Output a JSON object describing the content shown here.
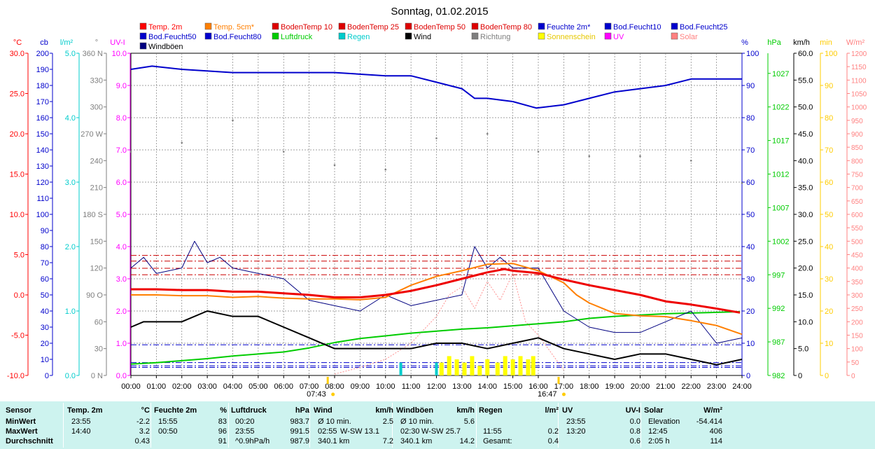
{
  "chart_data": {
    "type": "line",
    "title": "Sonntag, 01.02.2015",
    "legend": [
      {
        "name": "Temp. 2m",
        "color": "#ff0000"
      },
      {
        "name": "Temp. 5cm*",
        "color": "#ff7f00"
      },
      {
        "name": "BodenTemp 10",
        "color": "#dd0000"
      },
      {
        "name": "BodenTemp 25",
        "color": "#dd0000"
      },
      {
        "name": "BodenTemp 50",
        "color": "#dd0000"
      },
      {
        "name": "BodenTemp 80",
        "color": "#dd0000"
      },
      {
        "name": "Feuchte 2m*",
        "color": "#0000cc"
      },
      {
        "name": "Bod.Feucht10",
        "color": "#0000cc"
      },
      {
        "name": "Bod.Feucht25",
        "color": "#0000cc"
      },
      {
        "name": "Bod.Feucht50",
        "color": "#0000cc"
      },
      {
        "name": "Bod.Feucht80",
        "color": "#0000cc"
      },
      {
        "name": "Luftdruck",
        "color": "#00cc00"
      },
      {
        "name": "Regen",
        "color": "#00cccc"
      },
      {
        "name": "Wind",
        "color": "#000000"
      },
      {
        "name": "Richtung",
        "color": "#7f7f7f"
      },
      {
        "name": "Sonnenschein",
        "color": "#ffff00"
      },
      {
        "name": "UV",
        "color": "#ff00ff"
      },
      {
        "name": "Solar",
        "color": "#ff8080"
      },
      {
        "name": "Windböen",
        "color": "#000080"
      }
    ],
    "x_ticks": [
      "00:00",
      "01:00",
      "02:00",
      "03:00",
      "04:00",
      "05:00",
      "06:00",
      "07:00",
      "08:00",
      "09:00",
      "10:00",
      "11:00",
      "12:00",
      "13:00",
      "14:00",
      "15:00",
      "16:00",
      "17:00",
      "18:00",
      "19:00",
      "20:00",
      "21:00",
      "22:00",
      "23:00",
      "24:00"
    ],
    "sunrise_label": "07:43",
    "sunset_label": "16:47",
    "left_axes": [
      {
        "unit": "°C",
        "color": "#ff0000",
        "ticks": [
          "30.0",
          "25.0",
          "20.0",
          "15.0",
          "10.0",
          "5.0",
          "0.0",
          "-5.0",
          "-10.0"
        ]
      },
      {
        "unit": "cb",
        "color": "#0000cc",
        "ticks": [
          "200",
          "190",
          "180",
          "170",
          "160",
          "150",
          "140",
          "130",
          "120",
          "110",
          "100",
          "90",
          "80",
          "70",
          "60",
          "50",
          "40",
          "30",
          "20",
          "10",
          "0"
        ]
      },
      {
        "unit": "l/m²",
        "color": "#00cccc",
        "ticks": [
          "5.0",
          "4.0",
          "3.0",
          "2.0",
          "1.0",
          "0.0"
        ]
      },
      {
        "unit": "°",
        "color": "#7f7f7f",
        "ticks": [
          "360 N",
          "330",
          "300",
          "270 W",
          "240",
          "210",
          "180 S",
          "150",
          "120",
          "90 O",
          "60",
          "30",
          "0 N"
        ]
      },
      {
        "unit": "UV-I",
        "color": "#ff00ff",
        "ticks": [
          "10.0",
          "9.0",
          "8.0",
          "7.0",
          "6.0",
          "5.0",
          "4.0",
          "3.0",
          "2.0",
          "1.0",
          "0.0"
        ]
      }
    ],
    "right_axes": [
      {
        "unit": "%",
        "color": "#0000cc",
        "ticks": [
          "100",
          "90",
          "80",
          "70",
          "60",
          "50",
          "40",
          "30",
          "20",
          "10",
          "0"
        ]
      },
      {
        "unit": "hPa",
        "color": "#00cc00",
        "ticks": [
          "1027",
          "1022",
          "1017",
          "1012",
          "1007",
          "1002",
          "997",
          "992",
          "987",
          "982"
        ]
      },
      {
        "unit": "km/h",
        "color": "#000000",
        "ticks": [
          "60.0",
          "55.0",
          "50.0",
          "45.0",
          "40.0",
          "35.0",
          "30.0",
          "25.0",
          "20.0",
          "15.0",
          "10.0",
          "5.0",
          "0"
        ]
      },
      {
        "unit": "min",
        "color": "#ffcc00",
        "ticks": [
          "100",
          "90",
          "80",
          "70",
          "60",
          "50",
          "40",
          "30",
          "20",
          "10",
          "0"
        ]
      },
      {
        "unit": "W/m²",
        "color": "#ff8080",
        "ticks": [
          "1200",
          "1150",
          "1100",
          "1050",
          "1000",
          "950",
          "900",
          "850",
          "800",
          "750",
          "700",
          "650",
          "600",
          "550",
          "500",
          "450",
          "400",
          "350",
          "300",
          "250",
          "200",
          "150",
          "100",
          "50",
          "0"
        ]
      }
    ],
    "series": [
      {
        "name": "Temp. 2m",
        "unit": "°C",
        "x": [
          0,
          1,
          2,
          3,
          4,
          5,
          6,
          7,
          8,
          9,
          10,
          11,
          12,
          13,
          14,
          14.67,
          15,
          16,
          17,
          18,
          19,
          20,
          21,
          22,
          23,
          23.92
        ],
        "y": [
          0.7,
          0.7,
          0.6,
          0.6,
          0.4,
          0.4,
          0.2,
          0.0,
          -0.3,
          -0.3,
          0.0,
          0.5,
          1.2,
          2.0,
          2.8,
          3.2,
          3.0,
          2.7,
          1.9,
          1.2,
          0.6,
          0.0,
          -0.8,
          -1.2,
          -1.7,
          -2.2
        ]
      },
      {
        "name": "Temp. 5cm*",
        "unit": "°C",
        "x": [
          0,
          1,
          2,
          3,
          4,
          5,
          6,
          7,
          8,
          9,
          10,
          11,
          12,
          13,
          14,
          15,
          16,
          17,
          17.5,
          18,
          19,
          20,
          21,
          22,
          23,
          24
        ],
        "y": [
          0.0,
          0.0,
          -0.1,
          -0.1,
          -0.3,
          -0.2,
          -0.4,
          -0.5,
          -0.5,
          -0.6,
          -0.3,
          1.2,
          2.3,
          3.0,
          3.8,
          3.9,
          3.0,
          1.5,
          0.0,
          -1.0,
          -2.3,
          -2.6,
          -2.7,
          -3.2,
          -3.8,
          -4.9
        ]
      },
      {
        "name": "Feuchte 2m*",
        "unit": "%",
        "x": [
          0,
          0.83,
          2,
          4,
          6,
          8,
          10,
          11,
          12,
          13,
          13.5,
          14,
          15,
          15.92,
          17,
          18,
          19,
          20,
          21,
          22,
          23,
          24
        ],
        "y": [
          95,
          96,
          95,
          94,
          94,
          94,
          93,
          93,
          91,
          89,
          86,
          86,
          85,
          83,
          84,
          86,
          88,
          89,
          90,
          92,
          92,
          92
        ]
      },
      {
        "name": "Luftdruck",
        "unit": "hPa",
        "x": [
          0,
          1,
          2,
          3,
          4,
          5,
          6,
          7,
          8,
          9,
          10,
          11,
          12,
          13,
          14,
          15,
          16,
          17,
          18,
          19,
          20,
          21,
          22,
          23,
          23.92
        ],
        "y": [
          983.7,
          983.9,
          984.2,
          984.5,
          984.9,
          985.2,
          985.5,
          986.1,
          986.9,
          987.5,
          987.9,
          988.3,
          988.6,
          988.9,
          989.1,
          989.4,
          989.7,
          990.0,
          990.5,
          990.8,
          991.0,
          991.2,
          991.3,
          991.4,
          991.5
        ]
      },
      {
        "name": "Wind",
        "unit": "km/h",
        "x": [
          0,
          0.5,
          1,
          2,
          3,
          4,
          5,
          6,
          7,
          8,
          9,
          10,
          11,
          12,
          13,
          14,
          15,
          16,
          17,
          18,
          19,
          20,
          21,
          22,
          23,
          24
        ],
        "y": [
          9,
          10,
          10,
          10,
          12,
          11,
          11,
          9,
          7,
          5,
          5,
          5,
          5,
          6,
          6,
          5,
          6,
          7,
          5,
          4,
          3,
          4,
          4,
          3,
          2,
          3
        ]
      },
      {
        "name": "Windböen",
        "unit": "km/h",
        "x": [
          0,
          0.5,
          1,
          2,
          2.5,
          3,
          3.5,
          4,
          5,
          6,
          7,
          8,
          9,
          10,
          11,
          12,
          13,
          13.5,
          14,
          14.5,
          15,
          15.5,
          16,
          17,
          18,
          19,
          20,
          21,
          22,
          23,
          24
        ],
        "y": [
          20,
          22,
          19,
          20,
          25,
          21,
          22,
          20,
          19,
          18,
          14,
          13,
          12,
          15,
          13,
          14,
          15,
          24,
          20,
          22,
          20,
          20,
          20,
          12,
          9,
          8,
          8,
          10,
          12,
          6,
          7
        ]
      },
      {
        "name": "Richtung",
        "unit": "°",
        "x": [
          0,
          2,
          4,
          6,
          8,
          10,
          12,
          14,
          16,
          18,
          20,
          22,
          24
        ],
        "y": [
          250,
          260,
          285,
          250,
          235,
          230,
          265,
          270,
          250,
          245,
          245,
          240,
          215
        ]
      }
    ],
    "reference_lines": [
      {
        "name": "BodenTemp 10",
        "unit": "°C",
        "value": 2.5
      },
      {
        "name": "BodenTemp 25",
        "unit": "°C",
        "value": 3.3
      },
      {
        "name": "BodenTemp 50",
        "unit": "°C",
        "value": 4.2
      },
      {
        "name": "BodenTemp 80",
        "unit": "°C",
        "value": 4.9
      },
      {
        "name": "Bod.Feucht10",
        "unit": "cb",
        "value": 19
      },
      {
        "name": "Bod.Feucht25",
        "unit": "cb",
        "value": 8
      },
      {
        "name": "Bod.Feucht50",
        "unit": "cb",
        "value": 6
      },
      {
        "name": "Bod.Feucht80",
        "unit": "cb",
        "value": 5
      }
    ],
    "sunshine_minutes": {
      "x": [
        12.2,
        12.5,
        12.8,
        13.1,
        13.4,
        13.7,
        14.0,
        14.4,
        14.7,
        15.0,
        15.3,
        15.6,
        15.8
      ],
      "y": [
        4,
        6,
        5,
        4,
        6,
        3,
        5,
        4,
        6,
        5,
        6,
        5,
        6
      ]
    },
    "rain_mm": {
      "x": [
        10.6,
        12.0
      ],
      "y": [
        0.2,
        0.2
      ]
    },
    "solar_wm2": {
      "x": [
        8,
        9,
        10,
        11,
        12,
        12.5,
        13,
        13.5,
        14,
        14.5,
        15,
        15.5,
        16,
        17
      ],
      "y": [
        5,
        30,
        60,
        120,
        220,
        300,
        330,
        250,
        350,
        280,
        380,
        200,
        150,
        20
      ]
    },
    "grid": true,
    "x_range": [
      0,
      24
    ],
    "temp_range": [
      -10,
      30
    ]
  },
  "stats": {
    "headers": [
      {
        "label": "Sensor"
      },
      {
        "label": "Temp. 2m",
        "unit": "°C"
      },
      {
        "label": "Feuchte 2m",
        "unit": "%"
      },
      {
        "label": "Luftdruck",
        "unit": "hPa"
      },
      {
        "label": "Wind",
        "unit": "km/h"
      },
      {
        "label": "Windböen",
        "unit": "km/h"
      },
      {
        "label": "Regen",
        "unit": "l/m²"
      },
      {
        "label": "UV",
        "unit": "UV-I"
      },
      {
        "label": "Solar",
        "unit": "W/m²"
      }
    ],
    "rows": [
      {
        "label": "MinWert",
        "cells": [
          [
            "23:55",
            "-2.2"
          ],
          [
            "15:55",
            "83"
          ],
          [
            "00:20",
            "983.7"
          ],
          [
            "Ø 10 min.",
            "",
            "2.5"
          ],
          [
            "Ø 10 min.",
            "",
            "5.6"
          ],
          [
            "",
            ""
          ],
          [
            "23:55",
            "0.0"
          ],
          [
            "Elevation",
            "-54.414"
          ]
        ]
      },
      {
        "label": "MaxWert",
        "cells": [
          [
            "14:40",
            "3.2"
          ],
          [
            "00:50",
            "96"
          ],
          [
            "23:55",
            "991.5"
          ],
          [
            "02:55",
            "W-SW 13.1",
            ""
          ],
          [
            "02:30",
            "W-SW 25.7",
            ""
          ],
          [
            "11:55",
            "0.2"
          ],
          [
            "13:20",
            "0.8"
          ],
          [
            "12:45",
            "406"
          ]
        ]
      },
      {
        "label": "Durchschnitt",
        "cells": [
          [
            "",
            "0.43"
          ],
          [
            "",
            "91"
          ],
          [
            "^0.9hPa/h",
            "987.9"
          ],
          [
            "340.1 km",
            "",
            "7.2"
          ],
          [
            "340.1 km",
            "",
            "14.2"
          ],
          [
            "Gesamt:",
            "0.4"
          ],
          [
            "",
            "0.6"
          ],
          [
            "2:05 h",
            "114"
          ]
        ]
      }
    ]
  }
}
